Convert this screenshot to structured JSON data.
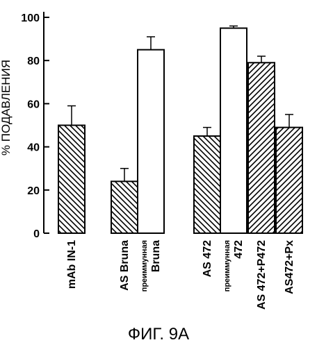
{
  "chart_data": {
    "type": "bar",
    "ylabel": "% ПОДАВЛЕНИЯ",
    "ylim": [
      0,
      100
    ],
    "yticks": [
      0,
      20,
      40,
      60,
      80,
      100
    ],
    "categories": [
      {
        "lines": [
          "mAb IN-1"
        ],
        "pattern": "hatch-back"
      },
      {
        "lines": [
          "AS Bruna"
        ],
        "pattern": "hatch-back"
      },
      {
        "lines": [
          "преиммунная",
          "Bruna"
        ],
        "pattern": "none"
      },
      {
        "lines": [
          "AS 472"
        ],
        "pattern": "hatch-back"
      },
      {
        "lines": [
          "преиммунная",
          "472"
        ],
        "pattern": "none"
      },
      {
        "lines": [
          "AS 472+P472"
        ],
        "pattern": "hatch-fwd"
      },
      {
        "lines": [
          "AS472+Px"
        ],
        "pattern": "hatch-fwd"
      }
    ],
    "values": [
      50,
      24,
      85,
      45,
      95,
      79,
      49
    ],
    "errors": [
      9,
      6,
      6,
      4,
      1,
      3,
      6
    ],
    "caption": "ФИГ. 9А"
  }
}
